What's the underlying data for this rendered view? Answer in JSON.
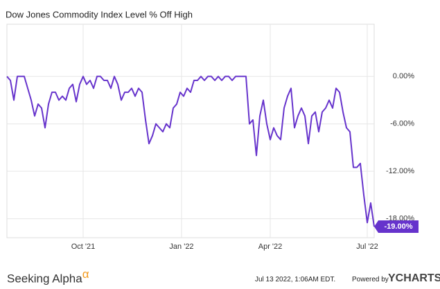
{
  "chart_data": {
    "type": "line",
    "title": "Dow Jones Commodity Index Level % Off High",
    "series": [
      {
        "name": "Dow Jones Commodity Index Level % Off High",
        "color": "#6633cc",
        "values": [
          0,
          -0.5,
          -3,
          0,
          0,
          0,
          -1.5,
          -3,
          -5,
          -3.5,
          -4,
          -6.5,
          -3.5,
          -2,
          -2,
          -3,
          -2.5,
          -3,
          -1.5,
          -1,
          -3.2,
          -1,
          0,
          -1,
          -0.5,
          -1.5,
          0,
          0,
          -0.5,
          -0.5,
          -1.5,
          0,
          -1,
          -3,
          -2,
          -2,
          -1.5,
          -2.5,
          -1.5,
          -2,
          -5.5,
          -8.5,
          -7.5,
          -6,
          -6.5,
          -7,
          -6,
          -6.5,
          -4,
          -3.5,
          -2,
          -2.5,
          -1.5,
          -2,
          -0.5,
          -0.5,
          0,
          -0.5,
          0,
          0,
          -0.5,
          0,
          -0.5,
          0,
          0,
          -0.5,
          0,
          0,
          0,
          0,
          -6,
          -5.5,
          -10,
          -5,
          -3,
          -6,
          -8,
          -6.5,
          -7.5,
          -8,
          -4,
          -2.5,
          -1.5,
          -6.5,
          -5,
          -4,
          -5,
          -8.5,
          -5,
          -4.5,
          -7,
          -4.5,
          -4,
          -3,
          -4,
          -1.5,
          -2,
          -4.5,
          -6.5,
          -7,
          -11.5,
          -11.5,
          -11,
          -15,
          -18.5,
          -16,
          -19
        ],
        "value_labels": [
          null,
          null,
          null,
          null,
          null,
          null,
          null,
          null,
          null,
          null,
          null,
          null,
          null,
          null,
          null,
          null,
          null,
          null,
          null,
          null,
          null,
          null,
          null,
          null,
          null,
          null,
          null,
          null,
          null,
          null,
          null,
          null,
          null,
          null,
          null,
          null,
          null,
          null,
          null,
          null,
          null,
          null,
          null,
          null,
          null,
          null,
          null,
          null,
          null,
          null,
          null,
          null,
          null,
          null,
          null,
          null,
          null,
          null,
          null,
          null,
          null,
          null,
          null,
          null,
          null,
          null,
          null,
          null,
          null,
          null,
          null,
          null,
          null,
          null,
          null,
          null,
          null,
          null,
          null,
          null,
          null,
          null,
          null,
          null,
          null,
          null,
          null,
          null,
          null,
          null,
          null,
          null,
          null,
          null,
          null,
          null,
          null,
          null,
          null,
          null,
          null,
          null,
          null,
          null,
          null,
          null,
          "-19.00%"
        ]
      }
    ],
    "xlim": [
      0,
      106
    ],
    "xticks": [
      {
        "value": 22,
        "label": "Oct '21"
      },
      {
        "value": 50.4,
        "label": "Jan '22"
      },
      {
        "value": 76,
        "label": "Apr '22"
      },
      {
        "value": 104,
        "label": "Jul '22"
      }
    ],
    "ylim": [
      -20.4,
      6.6
    ],
    "yticks": [
      {
        "value": 0,
        "label": "0.00%"
      },
      {
        "value": -6,
        "label": "-6.00%"
      },
      {
        "value": -12,
        "label": "-12.00%"
      },
      {
        "value": -18,
        "label": "-18.00%"
      }
    ],
    "grid": true,
    "footer": {
      "brand": "Seeking Alpha",
      "brand_mark": "α",
      "timestamp": "Jul 13 2022, 1:06AM EDT.",
      "powered": "Powered by",
      "provider": "YCHARTS"
    }
  }
}
